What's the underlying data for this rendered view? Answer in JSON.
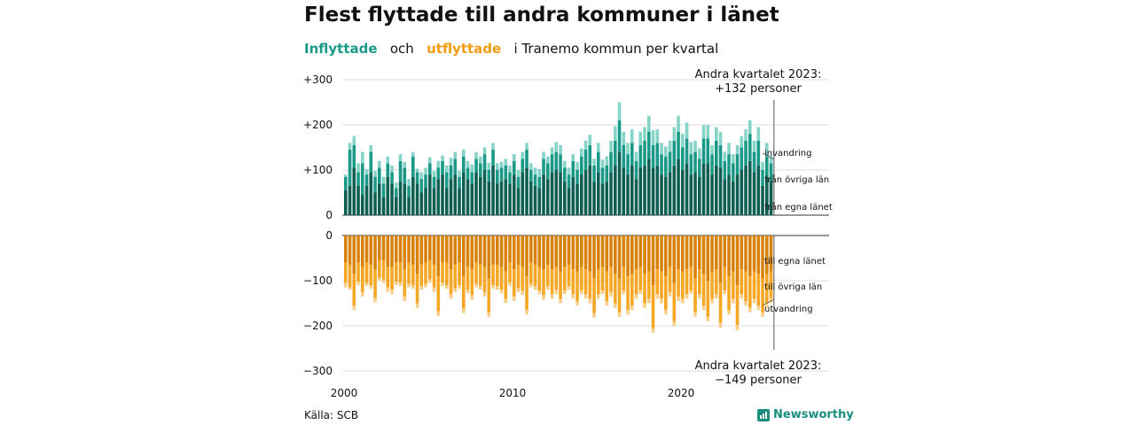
{
  "title": "Flest flyttade till andra kommuner i länet",
  "subtitle": {
    "in_label": "Inflyttade",
    "and_label": "och",
    "out_label": "utflyttade",
    "rest": "i Tranemo  kommun  per  kvartal"
  },
  "source": "Källa: SCB",
  "brand": "Newsworthy",
  "colors": {
    "in_local": "#0e5e52",
    "in_other": "#1a9988",
    "in_abroad": "#86d3c7",
    "out_local": "#d9820b",
    "out_other": "#f5a623",
    "out_abroad": "#f8cf8a"
  },
  "chart_data": {
    "type": "bar",
    "stacked": true,
    "x_start": "2000 Q1",
    "x_ticks": [
      "2000",
      "2010",
      "2020"
    ],
    "y_ticks_top": [
      "+300",
      "+200",
      "+100",
      "0"
    ],
    "y_ticks_bottom": [
      "0",
      "−100",
      "−200",
      "−300"
    ],
    "ylim_top": [
      0,
      300
    ],
    "ylim_bottom": [
      -300,
      0
    ],
    "inflow_total": [
      90,
      160,
      175,
      115,
      140,
      102,
      155,
      98,
      120,
      85,
      130,
      110,
      72,
      135,
      118,
      80,
      140,
      103,
      95,
      105,
      128,
      98,
      120,
      132,
      110,
      127,
      140,
      98,
      145,
      120,
      112,
      140,
      130,
      150,
      116,
      160,
      115,
      118,
      125,
      110,
      135,
      100,
      140,
      160,
      115,
      105,
      102,
      140,
      130,
      150,
      162,
      155,
      120,
      105,
      135,
      118,
      148,
      165,
      178,
      125,
      160,
      123,
      130,
      165,
      197,
      250,
      185,
      160,
      190,
      140,
      185,
      195,
      220,
      188,
      190,
      160,
      152,
      165,
      195,
      220,
      180,
      205,
      162,
      165,
      148,
      200,
      200,
      155,
      195,
      185,
      140,
      160,
      135,
      155,
      175,
      190,
      210,
      165,
      195,
      118,
      160,
      132
    ],
    "inflow_series": [
      {
        "name": "från egna länet",
        "values": [
          55,
          65,
          105,
          65,
          45,
          65,
          95,
          50,
          70,
          40,
          85,
          70,
          40,
          75,
          70,
          40,
          85,
          70,
          50,
          60,
          90,
          60,
          80,
          90,
          60,
          80,
          90,
          60,
          95,
          80,
          70,
          95,
          85,
          100,
          75,
          110,
          70,
          75,
          80,
          70,
          90,
          60,
          95,
          105,
          75,
          65,
          60,
          90,
          80,
          95,
          100,
          95,
          75,
          60,
          85,
          70,
          90,
          100,
          110,
          75,
          95,
          70,
          75,
          95,
          110,
          140,
          105,
          90,
          110,
          80,
          105,
          110,
          125,
          105,
          110,
          90,
          85,
          95,
          110,
          125,
          100,
          115,
          90,
          95,
          85,
          115,
          115,
          90,
          110,
          105,
          80,
          90,
          75,
          90,
          100,
          110,
          120,
          95,
          110,
          65,
          85,
          75
        ]
      },
      {
        "name": "från övriga län",
        "values": [
          30,
          80,
          50,
          30,
          70,
          25,
          45,
          35,
          35,
          30,
          30,
          25,
          20,
          45,
          35,
          25,
          45,
          25,
          30,
          30,
          25,
          25,
          25,
          30,
          35,
          30,
          35,
          25,
          35,
          25,
          25,
          30,
          30,
          35,
          25,
          35,
          30,
          30,
          30,
          25,
          30,
          25,
          30,
          40,
          25,
          25,
          25,
          35,
          35,
          40,
          40,
          40,
          30,
          30,
          35,
          30,
          40,
          45,
          45,
          35,
          45,
          35,
          35,
          45,
          55,
          70,
          50,
          45,
          50,
          40,
          50,
          55,
          60,
          50,
          50,
          45,
          45,
          45,
          55,
          60,
          50,
          55,
          45,
          45,
          40,
          55,
          55,
          45,
          55,
          50,
          40,
          45,
          40,
          45,
          50,
          55,
          60,
          45,
          55,
          35,
          45,
          40
        ]
      },
      {
        "name": "invandring",
        "values": [
          5,
          15,
          20,
          20,
          25,
          12,
          15,
          13,
          15,
          15,
          15,
          15,
          12,
          15,
          13,
          15,
          10,
          8,
          15,
          15,
          13,
          13,
          15,
          12,
          15,
          17,
          15,
          13,
          15,
          15,
          17,
          15,
          15,
          15,
          16,
          15,
          15,
          13,
          15,
          15,
          15,
          15,
          15,
          15,
          15,
          15,
          17,
          15,
          15,
          15,
          22,
          20,
          15,
          15,
          15,
          18,
          18,
          20,
          23,
          15,
          20,
          18,
          20,
          25,
          32,
          40,
          30,
          25,
          30,
          20,
          30,
          30,
          35,
          33,
          30,
          25,
          22,
          25,
          30,
          35,
          30,
          35,
          27,
          25,
          23,
          30,
          30,
          20,
          30,
          30,
          20,
          25,
          20,
          20,
          25,
          25,
          30,
          25,
          30,
          18,
          30,
          17
        ]
      }
    ],
    "outflow_total": [
      -115,
      -120,
      -165,
      -110,
      -135,
      -112,
      -118,
      -148,
      -100,
      -105,
      -125,
      -130,
      -110,
      -112,
      -145,
      -115,
      -118,
      -160,
      -120,
      -115,
      -105,
      -125,
      -178,
      -112,
      -118,
      -140,
      -125,
      -118,
      -172,
      -128,
      -142,
      -115,
      -120,
      -135,
      -180,
      -118,
      -120,
      -128,
      -150,
      -112,
      -145,
      -125,
      -132,
      -175,
      -115,
      -120,
      -130,
      -142,
      -120,
      -140,
      -130,
      -150,
      -130,
      -120,
      -140,
      -155,
      -130,
      -140,
      -150,
      -182,
      -140,
      -130,
      -155,
      -135,
      -160,
      -180,
      -130,
      -175,
      -165,
      -140,
      -130,
      -160,
      -150,
      -215,
      -140,
      -150,
      -175,
      -135,
      -200,
      -145,
      -150,
      -140,
      -130,
      -180,
      -140,
      -165,
      -190,
      -150,
      -140,
      -205,
      -130,
      -175,
      -150,
      -210,
      -140,
      -155,
      -170,
      -150,
      -165,
      -180,
      -160,
      -149
    ],
    "outflow_series": [
      {
        "name": "till egna länet",
        "values": [
          -60,
          -65,
          -85,
          -60,
          -70,
          -60,
          -65,
          -75,
          -55,
          -55,
          -70,
          -70,
          -60,
          -60,
          -75,
          -60,
          -65,
          -85,
          -65,
          -60,
          -55,
          -65,
          -90,
          -60,
          -60,
          -75,
          -65,
          -60,
          -90,
          -70,
          -75,
          -60,
          -65,
          -70,
          -95,
          -65,
          -65,
          -70,
          -80,
          -60,
          -75,
          -65,
          -70,
          -90,
          -60,
          -65,
          -70,
          -75,
          -65,
          -75,
          -70,
          -80,
          -70,
          -65,
          -75,
          -80,
          -70,
          -75,
          -80,
          -95,
          -75,
          -70,
          -80,
          -70,
          -85,
          -95,
          -70,
          -90,
          -85,
          -75,
          -70,
          -85,
          -80,
          -110,
          -75,
          -80,
          -90,
          -70,
          -105,
          -75,
          -80,
          -75,
          -70,
          -95,
          -75,
          -85,
          -100,
          -80,
          -75,
          -105,
          -70,
          -90,
          -80,
          -110,
          -75,
          -80,
          -90,
          -80,
          -85,
          -95,
          -85,
          -80
        ]
      },
      {
        "name": "till övriga län",
        "values": [
          -45,
          -50,
          -70,
          -42,
          -55,
          -45,
          -45,
          -63,
          -38,
          -42,
          -45,
          -50,
          -42,
          -44,
          -60,
          -47,
          -45,
          -65,
          -47,
          -47,
          -42,
          -50,
          -78,
          -44,
          -50,
          -55,
          -52,
          -50,
          -72,
          -50,
          -57,
          -47,
          -47,
          -55,
          -75,
          -45,
          -47,
          -50,
          -60,
          -44,
          -60,
          -52,
          -52,
          -75,
          -47,
          -47,
          -52,
          -57,
          -47,
          -55,
          -50,
          -60,
          -52,
          -47,
          -55,
          -65,
          -52,
          -55,
          -60,
          -77,
          -55,
          -52,
          -65,
          -55,
          -65,
          -75,
          -52,
          -75,
          -70,
          -55,
          -52,
          -65,
          -60,
          -95,
          -55,
          -60,
          -75,
          -55,
          -85,
          -60,
          -60,
          -55,
          -52,
          -75,
          -55,
          -70,
          -80,
          -60,
          -55,
          -88,
          -52,
          -75,
          -60,
          -88,
          -55,
          -65,
          -70,
          -60,
          -70,
          -75,
          -65,
          -59
        ]
      },
      {
        "name": "utvandring",
        "values": [
          -10,
          -5,
          -10,
          -8,
          -10,
          -7,
          -8,
          -10,
          -7,
          -8,
          -10,
          -10,
          -8,
          -8,
          -10,
          -8,
          -8,
          -10,
          -8,
          -8,
          -8,
          -10,
          -10,
          -8,
          -8,
          -10,
          -8,
          -8,
          -10,
          -8,
          -10,
          -8,
          -8,
          -10,
          -10,
          -8,
          -8,
          -8,
          -10,
          -8,
          -10,
          -8,
          -10,
          -10,
          -8,
          -8,
          -8,
          -10,
          -8,
          -10,
          -10,
          -10,
          -8,
          -8,
          -10,
          -10,
          -8,
          -10,
          -10,
          -10,
          -10,
          -8,
          -10,
          -10,
          -10,
          -10,
          -8,
          -10,
          -10,
          -10,
          -8,
          -10,
          -10,
          -10,
          -10,
          -10,
          -10,
          -10,
          -10,
          -10,
          -10,
          -10,
          -8,
          -10,
          -10,
          -10,
          -10,
          -10,
          -10,
          -12,
          -8,
          -10,
          -10,
          -12,
          -10,
          -10,
          -10,
          -10,
          -10,
          -10,
          -10,
          -10
        ]
      }
    ],
    "annotation_in": {
      "line1": "Andra kvartalet 2023:",
      "line2": "+132 personer"
    },
    "annotation_out": {
      "line1": "Andra kvartalet 2023:",
      "line2": "−149 personer"
    }
  }
}
